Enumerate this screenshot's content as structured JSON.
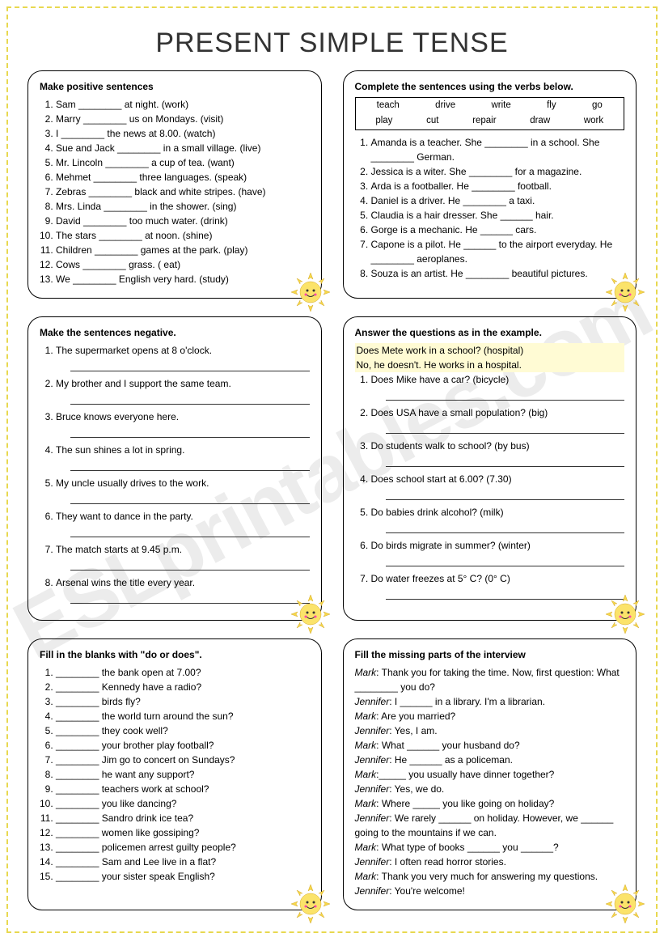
{
  "title": "PRESENT SIMPLE TENSE",
  "watermark": "ESLprintables.com",
  "box1": {
    "title": "Make positive sentences",
    "items": [
      "Sam ________ at night. (work)",
      "Marry ________ us on Mondays. (visit)",
      "I ________ the news at 8.00. (watch)",
      "Sue and Jack ________ in a small village. (live)",
      "Mr. Lincoln ________ a cup of tea. (want)",
      "Mehmet ________ three languages. (speak)",
      "Zebras ________ black and white stripes. (have)",
      "Mrs. Linda ________ in the shower. (sing)",
      "David ________ too much water. (drink)",
      "The stars ________ at noon. (shine)",
      "Children ________ games at the park. (play)",
      "Cows ________ grass. ( eat)",
      "We ________ English very hard. (study)"
    ]
  },
  "box2": {
    "title": "Complete the sentences using the verbs below.",
    "verbs_row1": [
      "teach",
      "drive",
      "write",
      "fly",
      "go"
    ],
    "verbs_row2": [
      "play",
      "cut",
      "repair",
      "draw",
      "work"
    ],
    "items": [
      "Amanda is a teacher. She ________ in a school. She ________ German.",
      "Jessica is a witer. She ________ for a magazine.",
      "Arda is a footballer. He ________ football.",
      "Daniel is a driver. He ________ a taxi.",
      "Claudia is a hair dresser. She ______ hair.",
      "Gorge is a mechanic. He ______ cars.",
      "Capone is a pilot. He ______ to the airport everyday.  He ________ aeroplanes.",
      "Souza is an artist. He ________ beautiful pictures."
    ]
  },
  "box3": {
    "title": "Make the sentences negative.",
    "items": [
      "The supermarket opens at 8 o'clock.",
      "My brother and I support the same team.",
      "Bruce knows everyone here.",
      "The sun shines a lot in spring.",
      "My uncle usually drives to the work.",
      "They want to dance in the party.",
      "The match starts at 9.45 p.m.",
      "Arsenal wins the title every year."
    ]
  },
  "box4": {
    "title": "Answer the questions as in the example.",
    "example1": "Does Mete work in a school?  (hospital)",
    "example2": "No, he doesn't. He works in a hospital.",
    "items": [
      "Does Mike have a car? (bicycle)",
      "Does USA have a small population? (big)",
      "Do students walk to school? (by bus)",
      "Does school start at 6.00? (7.30)",
      "Do babies drink alcohol? (milk)",
      "Do birds migrate in summer? (winter)",
      "Do water freezes at 5° C? (0° C)"
    ]
  },
  "box5": {
    "title": "Fill in the blanks with \"do or does\".",
    "items": [
      "________ the bank open at 7.00?",
      "________ Kennedy have a radio?",
      "________ birds fly?",
      "________ the world turn around the sun?",
      "________ they cook well?",
      "________ your brother play football?",
      "________ Jim go to concert on Sundays?",
      "________ he want any support?",
      "________ teachers work at school?",
      "________ you like dancing?",
      "________ Sandro drink ice tea?",
      "________ women like gossiping?",
      "________ policemen arrest guilty people?",
      "________ Sam and Lee live in a flat?",
      "________ your sister speak English?"
    ]
  },
  "box6": {
    "title": "Fill the missing parts of the interview",
    "lines": [
      {
        "s": "Mark",
        "t": ": Thank you for taking the time. Now, first question: What ________ you do?"
      },
      {
        "s": "Jennifer",
        "t": ": I ______ in a library. I'm a librarian."
      },
      {
        "s": "Mark",
        "t": ": Are you married?"
      },
      {
        "s": "Jennifer",
        "t": ": Yes, I am."
      },
      {
        "s": "Mark",
        "t": ": What ______ your husband do?"
      },
      {
        "s": "Jennifer",
        "t": ": He ______ as a policeman."
      },
      {
        "s": "Mark",
        "t": ":_____ you usually have dinner together?"
      },
      {
        "s": "Jennifer",
        "t": ": Yes, we do."
      },
      {
        "s": "Mark",
        "t": ": Where _____ you like going on holiday?"
      },
      {
        "s": "Jennifer",
        "t": ": We rarely ______ on holiday. However, we ______ going to the mountains if we can."
      },
      {
        "s": "Mark",
        "t": ": What type of books ______ you ______?"
      },
      {
        "s": "Jennifer",
        "t": ": I often read horror stories."
      },
      {
        "s": "Mark",
        "t": ": Thank you very much for answering my questions."
      },
      {
        "s": "Jennifer",
        "t": ": You're welcome!"
      }
    ]
  }
}
